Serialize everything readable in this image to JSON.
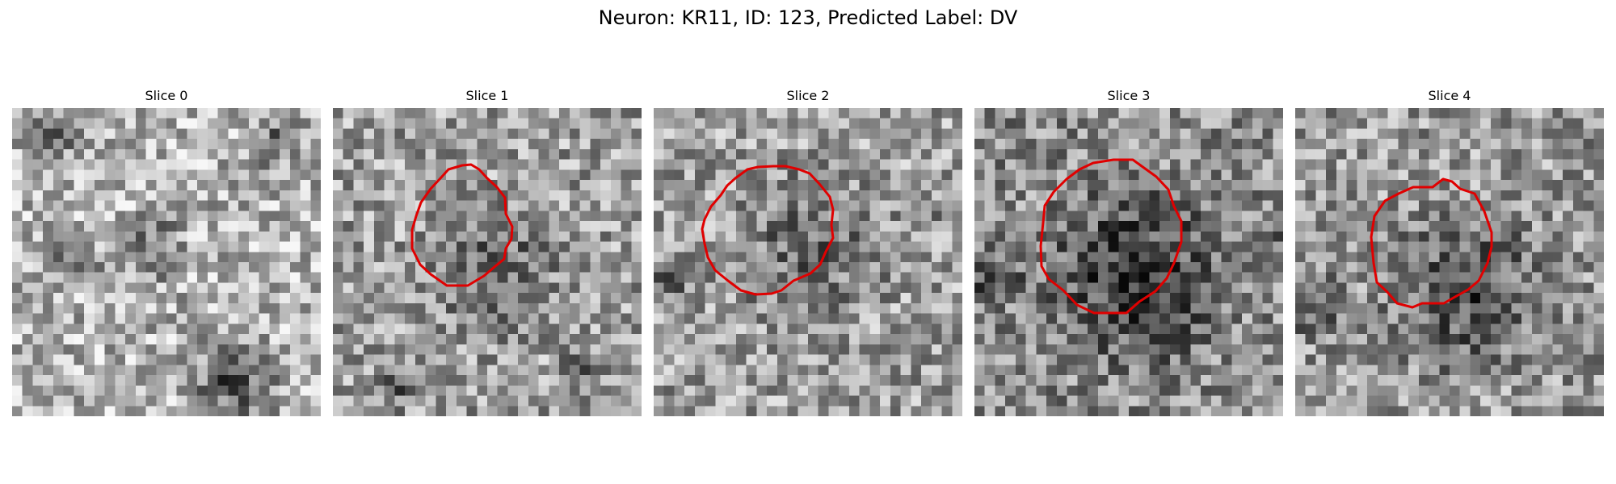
{
  "figure": {
    "title": "Neuron: KR11, ID: 123, Predicted Label: DV",
    "contour_color": "#e00000"
  },
  "panels": [
    {
      "title": "Slice 0",
      "has_contour": false
    },
    {
      "title": "Slice 1",
      "has_contour": true
    },
    {
      "title": "Slice 2",
      "has_contour": true
    },
    {
      "title": "Slice 3",
      "has_contour": true
    },
    {
      "title": "Slice 4",
      "has_contour": true
    }
  ]
}
